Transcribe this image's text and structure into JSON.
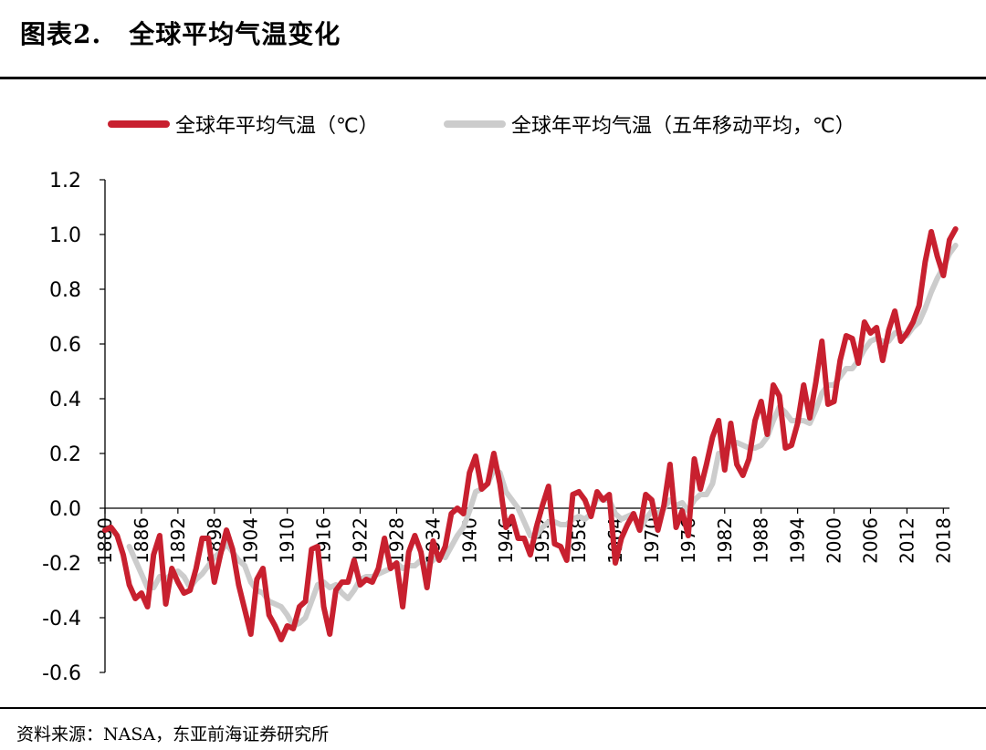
{
  "figure": {
    "label": "图表2.",
    "title": "全球平均气温变化",
    "source": "资料来源：NASA，东亚前海证券研究所"
  },
  "colors": {
    "annual": "#c8202f",
    "moving_avg": "#cccccc",
    "axis": "#000000"
  },
  "chart_data": {
    "type": "line",
    "title": "",
    "xlabel": "",
    "ylabel": "",
    "ylim": [
      -0.6,
      1.2
    ],
    "yticks": [
      "1.2",
      "1.0",
      "0.8",
      "0.6",
      "0.4",
      "0.2",
      "0.0",
      "-0.2",
      "-0.4",
      "-0.6"
    ],
    "xlim": [
      1880,
      2019
    ],
    "xticks": [
      "1880",
      "1886",
      "1892",
      "1898",
      "1904",
      "1910",
      "1916",
      "1922",
      "1928",
      "1934",
      "1940",
      "1946",
      "1952",
      "1958",
      "1964",
      "1970",
      "1976",
      "1982",
      "1988",
      "1994",
      "2000",
      "2006",
      "2012",
      "2018"
    ],
    "grid": false,
    "legend_position": "top",
    "x_start": 1880,
    "series": [
      {
        "name": "全球年平均气温（℃）",
        "color": "#c8202f",
        "values": [
          -0.08,
          -0.07,
          -0.1,
          -0.17,
          -0.28,
          -0.33,
          -0.31,
          -0.36,
          -0.17,
          -0.1,
          -0.35,
          -0.22,
          -0.27,
          -0.31,
          -0.3,
          -0.22,
          -0.11,
          -0.11,
          -0.27,
          -0.17,
          -0.08,
          -0.15,
          -0.28,
          -0.37,
          -0.46,
          -0.26,
          -0.22,
          -0.39,
          -0.43,
          -0.48,
          -0.43,
          -0.44,
          -0.36,
          -0.34,
          -0.15,
          -0.14,
          -0.36,
          -0.46,
          -0.3,
          -0.27,
          -0.27,
          -0.19,
          -0.28,
          -0.26,
          -0.27,
          -0.22,
          -0.11,
          -0.22,
          -0.2,
          -0.36,
          -0.16,
          -0.1,
          -0.16,
          -0.29,
          -0.12,
          -0.19,
          -0.14,
          -0.02,
          0.0,
          -0.02,
          0.13,
          0.19,
          0.07,
          0.09,
          0.2,
          0.09,
          -0.07,
          -0.03,
          -0.11,
          -0.11,
          -0.17,
          -0.07,
          0.01,
          0.08,
          -0.13,
          -0.14,
          -0.19,
          0.05,
          0.06,
          0.03,
          -0.03,
          0.06,
          0.03,
          0.05,
          -0.2,
          -0.11,
          -0.06,
          -0.02,
          -0.08,
          0.05,
          0.03,
          -0.08,
          0.01,
          0.16,
          -0.07,
          -0.01,
          -0.1,
          0.18,
          0.07,
          0.16,
          0.26,
          0.32,
          0.14,
          0.31,
          0.16,
          0.12,
          0.18,
          0.32,
          0.39,
          0.27,
          0.45,
          0.41,
          0.22,
          0.23,
          0.31,
          0.45,
          0.33,
          0.46,
          0.61,
          0.38,
          0.39,
          0.54,
          0.63,
          0.62,
          0.53,
          0.68,
          0.64,
          0.66,
          0.54,
          0.65,
          0.72,
          0.61,
          0.64,
          0.68,
          0.74,
          0.9,
          1.01,
          0.92,
          0.85,
          0.98,
          1.02
        ]
      },
      {
        "name": "全球年平均气温（五年移动平均，℃）",
        "color": "#cccccc",
        "values": [
          null,
          null,
          null,
          null,
          -0.14,
          -0.19,
          -0.24,
          -0.29,
          -0.29,
          -0.25,
          -0.26,
          -0.24,
          -0.23,
          -0.25,
          -0.29,
          -0.26,
          -0.24,
          -0.21,
          -0.18,
          -0.16,
          -0.13,
          -0.16,
          -0.19,
          -0.21,
          -0.27,
          -0.3,
          -0.31,
          -0.34,
          -0.35,
          -0.36,
          -0.39,
          -0.43,
          -0.42,
          -0.4,
          -0.34,
          -0.28,
          -0.27,
          -0.29,
          -0.28,
          -0.31,
          -0.33,
          -0.3,
          -0.26,
          -0.25,
          -0.25,
          -0.24,
          -0.23,
          -0.22,
          -0.2,
          -0.22,
          -0.21,
          -0.21,
          -0.19,
          -0.21,
          -0.19,
          -0.17,
          -0.18,
          -0.14,
          -0.1,
          -0.07,
          -0.01,
          0.06,
          0.07,
          0.09,
          0.14,
          0.13,
          0.06,
          0.03,
          0.0,
          -0.05,
          -0.1,
          -0.1,
          -0.07,
          -0.05,
          -0.05,
          -0.06,
          -0.06,
          -0.04,
          -0.03,
          -0.04,
          -0.02,
          0.04,
          0.03,
          0.03,
          -0.02,
          -0.04,
          -0.03,
          -0.02,
          -0.08,
          -0.04,
          -0.01,
          -0.02,
          0.0,
          0.03,
          0.01,
          0.02,
          -0.01,
          0.03,
          0.05,
          0.05,
          0.09,
          0.2,
          0.19,
          0.24,
          0.24,
          0.23,
          0.22,
          0.22,
          0.23,
          0.26,
          0.32,
          0.37,
          0.35,
          0.32,
          0.32,
          0.32,
          0.31,
          0.36,
          0.42,
          0.45,
          0.45,
          0.48,
          0.51,
          0.51,
          0.54,
          0.58,
          0.61,
          0.62,
          0.61,
          0.61,
          0.64,
          0.64,
          0.63,
          0.66,
          0.68,
          0.73,
          0.79,
          0.84,
          0.88,
          0.93,
          0.96
        ]
      }
    ]
  }
}
